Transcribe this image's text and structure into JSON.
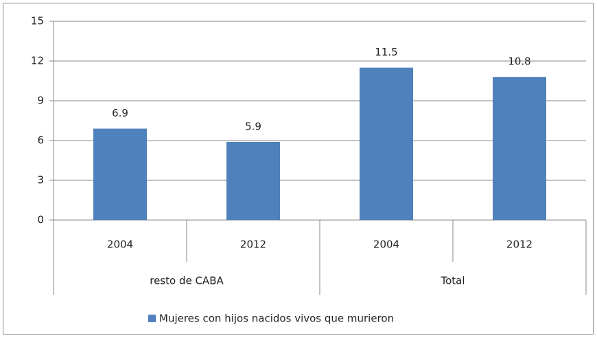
{
  "chart_data": {
    "type": "bar",
    "groups": [
      "resto de CABA",
      "Total"
    ],
    "categories": [
      "2004",
      "2012",
      "2004",
      "2012"
    ],
    "series": [
      {
        "name": "Mujeres con hijos nacidos vivos que murieron",
        "color": "#4f81bd",
        "values": [
          6.9,
          5.9,
          11.5,
          10.8
        ]
      }
    ],
    "ylim": [
      0,
      15
    ],
    "yticks": [
      0,
      3,
      6,
      9,
      12,
      15
    ],
    "grid": true,
    "legend": "bottom"
  }
}
